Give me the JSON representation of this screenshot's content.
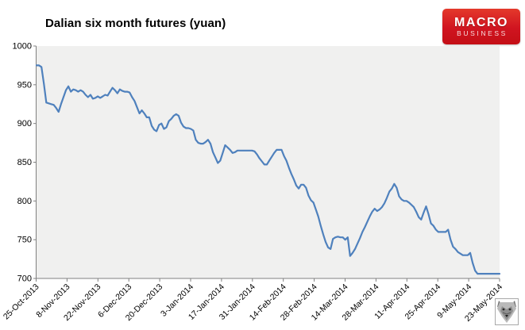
{
  "header": {
    "title": "Dalian six month futures (yuan)",
    "logo": {
      "line1": "MACRO",
      "line2": "BUSINESS",
      "bg_color": "#d01420"
    }
  },
  "chart_data": {
    "type": "line",
    "title": "Dalian six month futures (yuan)",
    "series": [
      {
        "name": "Dalian six month futures",
        "color": "#4F81BD"
      }
    ],
    "grid": false,
    "legend_position": "none",
    "plot_bg": "#f0f0ef",
    "axis_color": "#808080",
    "tick_text_color": "#000000",
    "ylim": [
      700,
      1000
    ],
    "y_ticks": [
      1000,
      950,
      900,
      850,
      800,
      750,
      700
    ],
    "x_tick_labels": [
      "25-Oct-2013",
      "8-Nov-2013",
      "22-Nov-2013",
      "6-Dec-2013",
      "20-Dec-2013",
      "3-Jan-2014",
      "17-Jan-2014",
      "31-Jan-2014",
      "14-Feb-2014",
      "28-Feb-2014",
      "14-Mar-2014",
      "28-Mar-2014",
      "11-Apr-2014",
      "25-Apr-2014",
      "9-May-2014",
      "23-May-2014"
    ],
    "values": [
      975,
      975,
      973,
      951,
      927,
      926,
      925,
      924,
      920,
      915,
      925,
      934,
      943,
      948,
      941,
      944,
      943,
      941,
      943,
      941,
      937,
      934,
      937,
      932,
      933,
      935,
      933,
      935,
      937,
      936,
      941,
      946,
      943,
      939,
      944,
      942,
      941,
      941,
      940,
      934,
      929,
      921,
      913,
      917,
      913,
      908,
      908,
      897,
      892,
      890,
      898,
      900,
      893,
      895,
      903,
      906,
      910,
      912,
      910,
      901,
      896,
      894,
      894,
      893,
      891,
      879,
      875,
      874,
      874,
      876,
      879,
      874,
      863,
      856,
      849,
      852,
      862,
      872,
      869,
      866,
      862,
      863,
      865,
      865,
      865,
      865,
      865,
      865,
      865,
      864,
      860,
      855,
      851,
      847,
      847,
      852,
      857,
      862,
      866,
      866,
      866,
      858,
      852,
      843,
      835,
      828,
      820,
      816,
      821,
      821,
      817,
      807,
      801,
      798,
      789,
      780,
      768,
      757,
      747,
      740,
      738,
      751,
      753,
      754,
      753,
      753,
      750,
      753,
      729,
      733,
      738,
      745,
      752,
      760,
      766,
      773,
      780,
      786,
      790,
      787,
      789,
      792,
      797,
      804,
      812,
      816,
      822,
      817,
      806,
      802,
      800,
      800,
      798,
      795,
      792,
      786,
      779,
      776,
      785,
      793,
      783,
      771,
      768,
      763,
      760,
      760,
      760,
      760,
      763,
      750,
      741,
      738,
      734,
      732,
      730,
      730,
      730,
      733,
      720,
      710,
      706,
      706,
      706,
      706,
      706,
      706,
      706,
      706,
      706,
      706
    ]
  },
  "icons": {
    "wolf": "wolf-logo"
  }
}
